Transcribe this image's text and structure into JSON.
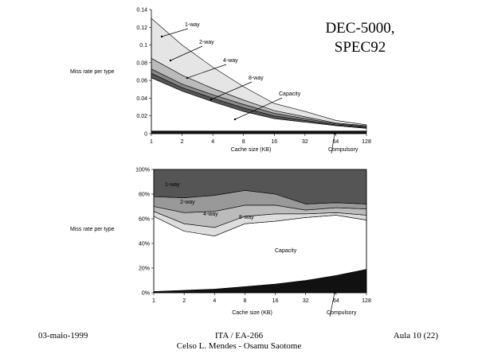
{
  "slide": {
    "title_lines": [
      "DEC-5000,",
      "SPEC92"
    ],
    "footer_left": "03-maio-1999",
    "footer_center_lines": [
      "ITA / EA-266",
      "Celso L. Mendes - Osamu Saotome"
    ],
    "footer_right": "Aula 10 (22)"
  },
  "chart_data": [
    {
      "type": "area",
      "title": "",
      "xlabel": "Cache size (KB)",
      "ylabel": "Miss rate per type",
      "categories": [
        "1",
        "2",
        "4",
        "8",
        "16",
        "32",
        "64",
        "128"
      ],
      "ylim": [
        0,
        0.14
      ],
      "yticks": [
        "0",
        "0.02",
        "0.04",
        "0.06",
        "0.08",
        "0.1",
        "0.12",
        "0.14"
      ],
      "stacked": true,
      "series": [
        {
          "name": "Compulsory",
          "values": [
            0.003,
            0.003,
            0.003,
            0.003,
            0.003,
            0.003,
            0.003,
            0.003
          ],
          "color": "#111111"
        },
        {
          "name": "Capacity",
          "values": [
            0.06,
            0.045,
            0.033,
            0.022,
            0.014,
            0.01,
            0.006,
            0.003
          ],
          "color": "#ffffff"
        },
        {
          "name": "8-way",
          "values": [
            0.005,
            0.004,
            0.004,
            0.004,
            0.003,
            0.002,
            0.001,
            0.001
          ],
          "color": "#555555"
        },
        {
          "name": "4-way",
          "values": [
            0.005,
            0.004,
            0.004,
            0.004,
            0.003,
            0.002,
            0.001,
            0.001
          ],
          "color": "#888888"
        },
        {
          "name": "2-way",
          "values": [
            0.012,
            0.01,
            0.007,
            0.005,
            0.003,
            0.002,
            0.001,
            0.001
          ],
          "color": "#bbbbbb"
        },
        {
          "name": "1-way",
          "values": [
            0.045,
            0.034,
            0.024,
            0.015,
            0.008,
            0.006,
            0.003,
            0.001
          ],
          "color": "#e5e5e5"
        }
      ],
      "annotations": [
        "1-way",
        "2-way",
        "4-way",
        "8-way",
        "Capacity",
        "Compulsory"
      ],
      "grid": false
    },
    {
      "type": "area",
      "title": "",
      "xlabel": "Cache size (KB)",
      "ylabel": "Miss rate per type",
      "categories": [
        "1",
        "2",
        "4",
        "8",
        "16",
        "32",
        "64",
        "128"
      ],
      "ylim": [
        0,
        100
      ],
      "yticks": [
        "0%",
        "20%",
        "40%",
        "60%",
        "80%",
        "100%"
      ],
      "stacked": true,
      "series": [
        {
          "name": "Compulsory",
          "values": [
            1,
            2,
            3,
            5,
            7,
            10,
            14,
            19
          ],
          "color": "#111111"
        },
        {
          "name": "Capacity",
          "values": [
            61,
            48,
            43,
            51,
            51,
            51,
            49,
            40
          ],
          "color": "#ffffff"
        },
        {
          "name": "8-way",
          "values": [
            4,
            6,
            7,
            6,
            6,
            3,
            2,
            4
          ],
          "color": "#dddddd"
        },
        {
          "name": "4-way",
          "values": [
            4,
            9,
            13,
            9,
            7,
            3,
            4,
            5
          ],
          "color": "#bbbbbb"
        },
        {
          "name": "2-way",
          "values": [
            8,
            12,
            13,
            12,
            9,
            5,
            4,
            4
          ],
          "color": "#999999"
        },
        {
          "name": "1-way",
          "values": [
            22,
            23,
            21,
            17,
            20,
            28,
            27,
            28
          ],
          "color": "#555555"
        }
      ],
      "annotations": [
        "1-way",
        "2-way",
        "4-way",
        "8-way",
        "Capacity",
        "Compulsory"
      ],
      "grid": false
    }
  ]
}
